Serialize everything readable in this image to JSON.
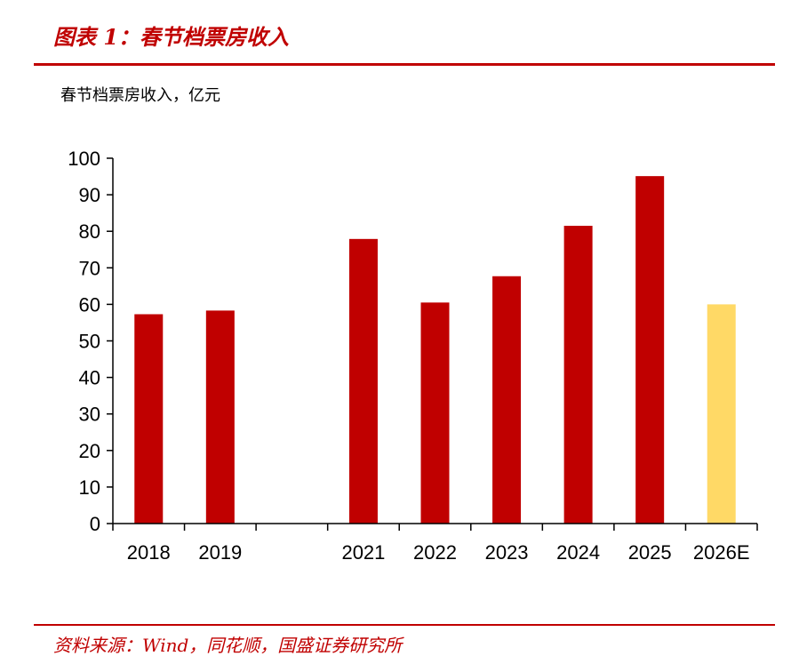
{
  "header": {
    "figure_title": "图表 1：春节档票房收入"
  },
  "footer": {
    "source": "资料来源：Wind，同花顺，国盛证券研究所"
  },
  "colors": {
    "accent": "#c00000",
    "bar_actual": "#c00000",
    "bar_estimate": "#ffd966"
  },
  "chart_data": {
    "type": "bar",
    "title": "春节档票房收入",
    "ylabel": "春节档票房收入，亿元",
    "xlabel": "",
    "ylim": [
      0,
      100
    ],
    "yticks": [
      0,
      10,
      20,
      30,
      40,
      50,
      60,
      70,
      80,
      90,
      100
    ],
    "categories": [
      "2018",
      "2019",
      "",
      "2021",
      "2022",
      "2023",
      "2024",
      "2025",
      "2026E"
    ],
    "values": [
      57.3,
      58.3,
      null,
      77.9,
      60.5,
      67.7,
      81.5,
      95.1,
      60.0
    ],
    "estimate_flags": [
      false,
      false,
      false,
      false,
      false,
      false,
      false,
      false,
      true
    ],
    "grid": false,
    "legend": "none"
  }
}
